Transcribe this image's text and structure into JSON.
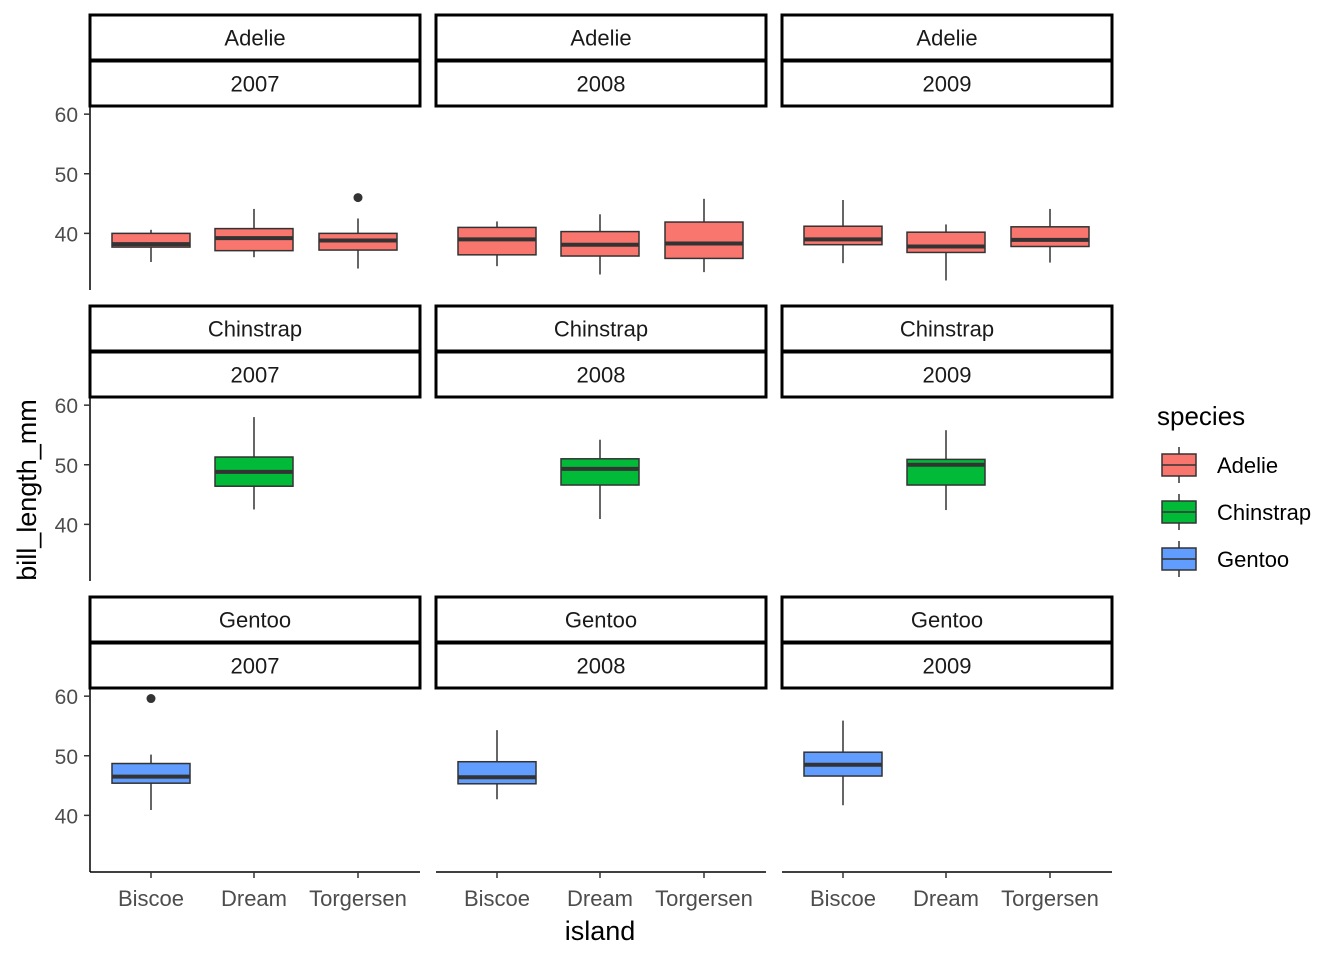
{
  "chart_data": {
    "type": "boxplot",
    "xlabel": "island",
    "ylabel": "bill_length_mm",
    "ylim": [
      30.5,
      61.2
    ],
    "y_ticks": [
      40,
      50,
      60
    ],
    "x_categories": [
      "Biscoe",
      "Dream",
      "Torgersen"
    ],
    "facet_rows": [
      "Adelie",
      "Chinstrap",
      "Gentoo"
    ],
    "facet_cols": [
      "2007",
      "2008",
      "2009"
    ],
    "legend": {
      "title": "species",
      "position": "right",
      "entries": [
        {
          "name": "Adelie",
          "color": "#F8766D"
        },
        {
          "name": "Chinstrap",
          "color": "#00BA38"
        },
        {
          "name": "Gentoo",
          "color": "#619CFF"
        }
      ]
    },
    "grid": false,
    "panels": [
      {
        "species": "Adelie",
        "year": "2007",
        "boxes": [
          {
            "island": "Biscoe",
            "min": 35.2,
            "q1": 37.7,
            "median": 38.2,
            "q3": 40.0,
            "max": 40.6,
            "outliers": []
          },
          {
            "island": "Dream",
            "min": 36.0,
            "q1": 37.1,
            "median": 39.2,
            "q3": 40.8,
            "max": 44.1,
            "outliers": []
          },
          {
            "island": "Torgersen",
            "min": 34.1,
            "q1": 37.2,
            "median": 38.8,
            "q3": 40.0,
            "max": 42.5,
            "outliers": [
              46.0
            ]
          }
        ]
      },
      {
        "species": "Adelie",
        "year": "2008",
        "boxes": [
          {
            "island": "Biscoe",
            "min": 34.5,
            "q1": 36.4,
            "median": 39.0,
            "q3": 41.0,
            "max": 42.0,
            "outliers": []
          },
          {
            "island": "Dream",
            "min": 33.1,
            "q1": 36.2,
            "median": 38.1,
            "q3": 40.3,
            "max": 43.2,
            "outliers": []
          },
          {
            "island": "Torgersen",
            "min": 33.5,
            "q1": 35.8,
            "median": 38.3,
            "q3": 41.9,
            "max": 45.8,
            "outliers": []
          }
        ]
      },
      {
        "species": "Adelie",
        "year": "2009",
        "boxes": [
          {
            "island": "Biscoe",
            "min": 35.0,
            "q1": 38.1,
            "median": 39.0,
            "q3": 41.2,
            "max": 45.6,
            "outliers": []
          },
          {
            "island": "Dream",
            "min": 32.1,
            "q1": 36.8,
            "median": 37.8,
            "q3": 40.2,
            "max": 41.5,
            "outliers": []
          },
          {
            "island": "Torgersen",
            "min": 35.1,
            "q1": 37.8,
            "median": 38.9,
            "q3": 41.1,
            "max": 44.1,
            "outliers": []
          }
        ]
      },
      {
        "species": "Chinstrap",
        "year": "2007",
        "boxes": [
          {
            "island": "Dream",
            "min": 42.5,
            "q1": 46.4,
            "median": 48.8,
            "q3": 51.3,
            "max": 58.0,
            "outliers": []
          }
        ]
      },
      {
        "species": "Chinstrap",
        "year": "2008",
        "boxes": [
          {
            "island": "Dream",
            "min": 40.9,
            "q1": 46.6,
            "median": 49.3,
            "q3": 51.0,
            "max": 54.2,
            "outliers": []
          }
        ]
      },
      {
        "species": "Chinstrap",
        "year": "2009",
        "boxes": [
          {
            "island": "Dream",
            "min": 42.4,
            "q1": 46.6,
            "median": 50.0,
            "q3": 50.9,
            "max": 55.8,
            "outliers": []
          }
        ]
      },
      {
        "species": "Gentoo",
        "year": "2007",
        "boxes": [
          {
            "island": "Biscoe",
            "min": 40.9,
            "q1": 45.4,
            "median": 46.5,
            "q3": 48.7,
            "max": 50.2,
            "outliers": [
              59.6
            ]
          }
        ]
      },
      {
        "species": "Gentoo",
        "year": "2008",
        "boxes": [
          {
            "island": "Biscoe",
            "min": 42.7,
            "q1": 45.3,
            "median": 46.4,
            "q3": 49.0,
            "max": 54.3,
            "outliers": []
          }
        ]
      },
      {
        "species": "Gentoo",
        "year": "2009",
        "boxes": [
          {
            "island": "Biscoe",
            "min": 41.7,
            "q1": 46.6,
            "median": 48.5,
            "q3": 50.6,
            "max": 55.9,
            "outliers": []
          }
        ]
      }
    ]
  }
}
